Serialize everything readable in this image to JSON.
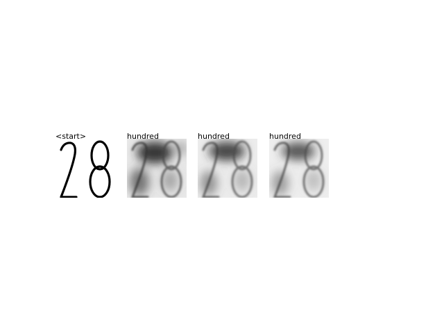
{
  "panels": [
    {
      "label": "<start>",
      "kind": "digit-image",
      "digits": "28"
    },
    {
      "label": "hundred",
      "kind": "attention-map",
      "digits": "28"
    },
    {
      "label": "hundred",
      "kind": "attention-map",
      "digits": "28"
    },
    {
      "label": "hundred",
      "kind": "attention-map",
      "digits": "28"
    }
  ]
}
